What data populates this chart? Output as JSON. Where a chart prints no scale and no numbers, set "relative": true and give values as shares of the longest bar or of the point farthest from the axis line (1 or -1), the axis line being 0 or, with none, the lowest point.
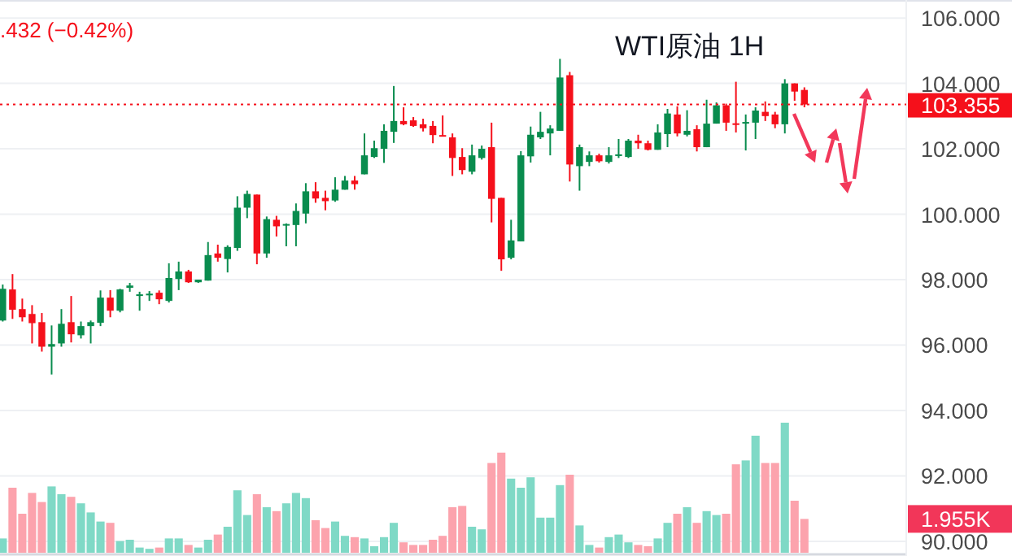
{
  "chart_data": [
    {
      "type": "candlestick",
      "title": "WTI原油 1H",
      "annotations": [
        ".432 (−0.42%)"
      ],
      "categories": [
        null,
        null,
        null,
        null,
        null,
        null,
        null,
        null,
        null,
        null,
        null,
        null,
        null,
        null,
        null,
        null,
        null,
        null,
        null,
        null,
        null,
        null,
        null,
        null,
        null,
        null,
        null,
        null,
        null,
        null,
        null,
        null,
        null,
        null,
        null,
        null,
        null,
        null,
        null,
        null,
        null,
        null,
        null,
        null,
        null,
        null,
        null,
        null,
        null,
        null,
        null,
        null,
        null,
        null,
        null,
        null,
        null,
        null,
        null,
        null,
        null,
        null,
        null,
        null,
        null,
        null,
        null,
        null,
        null,
        null,
        null,
        null,
        null,
        null,
        null,
        null,
        null,
        null,
        null,
        null,
        null,
        null,
        null
      ],
      "ohlc": [
        [
          96.75,
          97.85,
          96.72,
          97.72
        ],
        [
          97.7,
          98.17,
          96.8,
          97.08
        ],
        [
          97.1,
          97.42,
          96.72,
          96.85
        ],
        [
          96.95,
          97.22,
          96.05,
          96.67
        ],
        [
          96.7,
          96.98,
          95.8,
          95.95
        ],
        [
          95.95,
          96.6,
          95.1,
          96.03
        ],
        [
          96.05,
          97.1,
          95.95,
          96.65
        ],
        [
          96.7,
          97.5,
          96.08,
          96.33
        ],
        [
          96.3,
          96.72,
          96.2,
          96.58
        ],
        [
          96.58,
          96.75,
          96.05,
          96.7
        ],
        [
          96.68,
          97.67,
          96.58,
          97.45
        ],
        [
          97.45,
          97.68,
          96.85,
          97.05
        ],
        [
          97.05,
          97.72,
          97.0,
          97.7
        ],
        [
          97.75,
          97.9,
          97.63,
          97.82
        ],
        [
          97.53,
          97.63,
          97.05,
          97.55
        ],
        [
          97.55,
          97.65,
          97.35,
          97.57
        ],
        [
          97.6,
          97.67,
          97.25,
          97.4
        ],
        [
          97.35,
          98.5,
          97.3,
          98.05
        ],
        [
          98.02,
          98.55,
          97.68,
          98.25
        ],
        [
          98.25,
          98.3,
          97.9,
          97.92
        ],
        [
          97.92,
          98.0,
          97.9,
          98.0
        ],
        [
          97.97,
          99.15,
          97.97,
          98.75
        ],
        [
          98.8,
          99.07,
          98.55,
          98.67
        ],
        [
          98.63,
          99.05,
          98.22,
          99.0
        ],
        [
          98.97,
          100.55,
          98.88,
          100.2
        ],
        [
          100.2,
          100.72,
          99.88,
          100.62
        ],
        [
          100.6,
          100.6,
          98.47,
          98.8
        ],
        [
          98.8,
          99.93,
          98.67,
          99.85
        ],
        [
          99.83,
          99.95,
          99.32,
          99.63
        ],
        [
          99.68,
          99.72,
          99.02,
          99.7
        ],
        [
          99.67,
          100.33,
          99.02,
          100.1
        ],
        [
          100.02,
          100.95,
          99.72,
          100.7
        ],
        [
          100.7,
          100.98,
          100.35,
          100.48
        ],
        [
          100.5,
          100.72,
          100.12,
          100.4
        ],
        [
          100.42,
          101.13,
          100.38,
          100.75
        ],
        [
          100.75,
          101.17,
          100.75,
          101.03
        ],
        [
          101.03,
          101.17,
          100.75,
          100.92
        ],
        [
          101.22,
          102.47,
          101.22,
          101.8
        ],
        [
          101.75,
          102.25,
          101.72,
          102.02
        ],
        [
          102.0,
          102.75,
          101.57,
          102.55
        ],
        [
          102.52,
          103.92,
          102.18,
          102.85
        ],
        [
          102.85,
          103.27,
          102.72,
          102.75
        ],
        [
          102.87,
          102.97,
          102.67,
          102.7
        ],
        [
          102.75,
          102.92,
          102.53,
          102.63
        ],
        [
          102.7,
          102.85,
          102.17,
          102.42
        ],
        [
          102.42,
          103.02,
          102.38,
          102.38
        ],
        [
          102.35,
          102.47,
          101.17,
          101.72
        ],
        [
          101.75,
          102.02,
          101.22,
          101.35
        ],
        [
          101.3,
          102.13,
          101.22,
          101.8
        ],
        [
          101.72,
          102.1,
          101.67,
          102.0
        ],
        [
          102.05,
          102.8,
          99.75,
          100.47
        ],
        [
          100.5,
          100.5,
          98.27,
          98.62
        ],
        [
          98.67,
          99.83,
          98.62,
          99.2
        ],
        [
          99.17,
          101.93,
          99.17,
          101.8
        ],
        [
          101.77,
          102.68,
          101.58,
          102.43
        ],
        [
          102.35,
          103.13,
          102.3,
          102.52
        ],
        [
          102.47,
          102.72,
          101.8,
          102.62
        ],
        [
          102.55,
          104.75,
          102.55,
          104.18
        ],
        [
          104.25,
          104.35,
          101.0,
          101.52
        ],
        [
          101.47,
          102.13,
          100.72,
          102.05
        ],
        [
          101.6,
          101.92,
          101.47,
          101.8
        ],
        [
          101.8,
          101.85,
          101.58,
          101.62
        ],
        [
          101.6,
          102.05,
          101.55,
          101.8
        ],
        [
          101.82,
          102.3,
          101.72,
          101.83
        ],
        [
          101.75,
          102.3,
          101.72,
          102.25
        ],
        [
          102.25,
          102.43,
          102.0,
          102.17
        ],
        [
          102.17,
          102.25,
          101.95,
          101.97
        ],
        [
          101.97,
          102.75,
          101.97,
          102.5
        ],
        [
          102.45,
          103.22,
          102.05,
          103.08
        ],
        [
          103.05,
          103.3,
          102.38,
          102.47
        ],
        [
          102.43,
          103.18,
          102.38,
          102.55
        ],
        [
          102.6,
          102.72,
          101.92,
          102.05
        ],
        [
          102.05,
          103.5,
          102.05,
          102.77
        ],
        [
          102.77,
          103.42,
          102.77,
          103.33
        ],
        [
          103.33,
          103.38,
          102.55,
          102.8
        ],
        [
          102.78,
          104.05,
          102.5,
          102.75
        ],
        [
          102.8,
          103.05,
          101.95,
          102.82
        ],
        [
          102.8,
          103.27,
          102.3,
          103.17
        ],
        [
          103.13,
          103.45,
          102.85,
          103.0
        ],
        [
          103.05,
          103.13,
          102.63,
          102.75
        ],
        [
          102.75,
          104.13,
          102.47,
          104.0
        ],
        [
          104.0,
          104.0,
          103.47,
          103.75
        ],
        [
          103.8,
          103.88,
          103.27,
          103.355
        ]
      ],
      "colors": [
        "#098c4e",
        "#f5101b",
        "#f5101b",
        "#f5101b",
        "#f5101b",
        "#098c4e",
        "#098c4e",
        "#f5101b",
        "#098c4e",
        "#098c4e",
        "#098c4e",
        "#f5101b",
        "#098c4e",
        "#098c4e",
        "#098c4e",
        "#098c4e",
        "#f5101b",
        "#098c4e",
        "#098c4e",
        "#f5101b",
        "#098c4e",
        "#098c4e",
        "#f5101b",
        "#098c4e",
        "#098c4e",
        "#098c4e",
        "#f5101b",
        "#098c4e",
        "#f5101b",
        "#098c4e",
        "#098c4e",
        "#098c4e",
        "#f5101b",
        "#f5101b",
        "#098c4e",
        "#098c4e",
        "#f5101b",
        "#098c4e",
        "#098c4e",
        "#098c4e",
        "#098c4e",
        "#f5101b",
        "#f5101b",
        "#f5101b",
        "#f5101b",
        "#f5101b",
        "#f5101b",
        "#f5101b",
        "#098c4e",
        "#098c4e",
        "#f5101b",
        "#f5101b",
        "#098c4e",
        "#098c4e",
        "#098c4e",
        "#098c4e",
        "#098c4e",
        "#098c4e",
        "#f5101b",
        "#098c4e",
        "#098c4e",
        "#f5101b",
        "#098c4e",
        "#098c4e",
        "#098c4e",
        "#f5101b",
        "#f5101b",
        "#098c4e",
        "#098c4e",
        "#f5101b",
        "#098c4e",
        "#f5101b",
        "#098c4e",
        "#098c4e",
        "#f5101b",
        "#f5101b",
        "#098c4e",
        "#098c4e",
        "#f5101b",
        "#f5101b",
        "#098c4e",
        "#f5101b",
        "#f5101b"
      ],
      "ylim": [
        89.55,
        106.55
      ],
      "yticks": [
        {
          "value": 90,
          "label": "90.000"
        },
        {
          "value": 92,
          "label": "92.000"
        },
        {
          "value": 94,
          "label": "94.000"
        },
        {
          "value": 96,
          "label": "96.000"
        },
        {
          "value": 98,
          "label": "98.000"
        },
        {
          "value": 100,
          "label": "100.000"
        },
        {
          "value": 102,
          "label": "102.000"
        },
        {
          "value": 104,
          "label": "104.000"
        },
        {
          "value": 106,
          "label": "106.000"
        }
      ],
      "grid": "y",
      "ref_lines": [
        {
          "axis": "y",
          "value": 103.355,
          "label": "103.355",
          "color": "#f5101b",
          "line_style": "dotted"
        }
      ]
    },
    {
      "type": "bar",
      "relative": true,
      "annotations": [
        "1.955K"
      ],
      "categories": [
        null,
        null,
        null,
        null,
        null,
        null,
        null,
        null,
        null,
        null,
        null,
        null,
        null,
        null,
        null,
        null,
        null,
        null,
        null,
        null,
        null,
        null,
        null,
        null,
        null,
        null,
        null,
        null,
        null,
        null,
        null,
        null,
        null,
        null,
        null,
        null,
        null,
        null,
        null,
        null,
        null,
        null,
        null,
        null,
        null,
        null,
        null,
        null,
        null,
        null,
        null,
        null,
        null,
        null,
        null,
        null,
        null,
        null,
        null,
        null,
        null,
        null,
        null,
        null,
        null,
        null,
        null,
        null,
        null,
        null,
        null,
        null,
        null,
        null,
        null,
        null,
        null,
        null,
        null,
        null,
        null,
        null,
        null
      ],
      "values": [
        0.11,
        0.5,
        0.3,
        0.46,
        0.39,
        0.51,
        0.45,
        0.43,
        0.38,
        0.31,
        0.24,
        0.23,
        0.09,
        0.1,
        0.04,
        0.03,
        0.04,
        0.11,
        0.11,
        0.06,
        0.04,
        0.1,
        0.14,
        0.2,
        0.48,
        0.29,
        0.45,
        0.35,
        0.32,
        0.38,
        0.46,
        0.42,
        0.25,
        0.19,
        0.24,
        0.13,
        0.12,
        0.11,
        0.05,
        0.12,
        0.23,
        0.08,
        0.06,
        0.06,
        0.1,
        0.13,
        0.35,
        0.36,
        0.2,
        0.18,
        0.69,
        0.77,
        0.57,
        0.5,
        0.58,
        0.27,
        0.27,
        0.52,
        0.6,
        0.21,
        0.06,
        0.04,
        0.12,
        0.14,
        0.08,
        0.06,
        0.05,
        0.11,
        0.23,
        0.3,
        0.35,
        0.23,
        0.32,
        0.29,
        0.3,
        0.68,
        0.71,
        0.9,
        0.69,
        0.69,
        1.0,
        0.4,
        0.26
      ],
      "colors": [
        "#7fd9c6",
        "#fca3ad",
        "#fca3ad",
        "#fca3ad",
        "#fca3ad",
        "#7fd9c6",
        "#7fd9c6",
        "#fca3ad",
        "#7fd9c6",
        "#7fd9c6",
        "#7fd9c6",
        "#fca3ad",
        "#7fd9c6",
        "#7fd9c6",
        "#7fd9c6",
        "#7fd9c6",
        "#fca3ad",
        "#7fd9c6",
        "#7fd9c6",
        "#fca3ad",
        "#7fd9c6",
        "#7fd9c6",
        "#fca3ad",
        "#7fd9c6",
        "#7fd9c6",
        "#7fd9c6",
        "#fca3ad",
        "#7fd9c6",
        "#fca3ad",
        "#7fd9c6",
        "#7fd9c6",
        "#7fd9c6",
        "#fca3ad",
        "#fca3ad",
        "#7fd9c6",
        "#7fd9c6",
        "#fca3ad",
        "#7fd9c6",
        "#7fd9c6",
        "#7fd9c6",
        "#7fd9c6",
        "#fca3ad",
        "#fca3ad",
        "#fca3ad",
        "#fca3ad",
        "#fca3ad",
        "#fca3ad",
        "#fca3ad",
        "#7fd9c6",
        "#7fd9c6",
        "#fca3ad",
        "#fca3ad",
        "#7fd9c6",
        "#7fd9c6",
        "#7fd9c6",
        "#7fd9c6",
        "#7fd9c6",
        "#7fd9c6",
        "#fca3ad",
        "#7fd9c6",
        "#7fd9c6",
        "#fca3ad",
        "#7fd9c6",
        "#7fd9c6",
        "#7fd9c6",
        "#fca3ad",
        "#fca3ad",
        "#7fd9c6",
        "#7fd9c6",
        "#fca3ad",
        "#7fd9c6",
        "#fca3ad",
        "#7fd9c6",
        "#7fd9c6",
        "#fca3ad",
        "#fca3ad",
        "#7fd9c6",
        "#7fd9c6",
        "#fca3ad",
        "#fca3ad",
        "#7fd9c6",
        "#fca3ad",
        "#fca3ad"
      ]
    }
  ]
}
